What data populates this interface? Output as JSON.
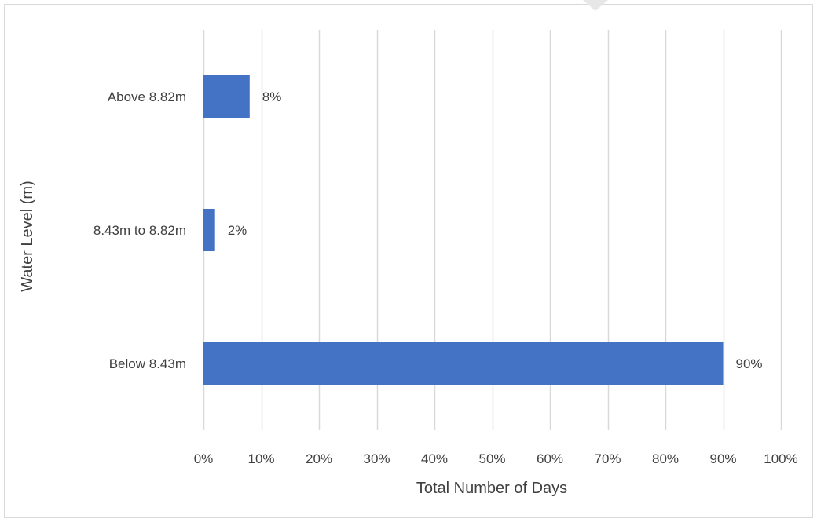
{
  "chart_data": {
    "type": "bar",
    "orientation": "horizontal",
    "categories": [
      "Above 8.82m",
      "8.43m to 8.82m",
      "Below 8.43m"
    ],
    "values": [
      8,
      2,
      90
    ],
    "data_labels": [
      "8%",
      "2%",
      "90%"
    ],
    "xlabel": "Total Number of Days",
    "ylabel": "Water Level (m)",
    "xlim": [
      0,
      100
    ],
    "x_ticks": [
      "0%",
      "10%",
      "20%",
      "30%",
      "40%",
      "50%",
      "60%",
      "70%",
      "80%",
      "90%",
      "100%"
    ],
    "grid": "vertical",
    "legend": "none",
    "bar_color": "#4472C4",
    "grid_color": "#D9D9D9",
    "frame_color": "#D9D9D9",
    "text_color": "#404040"
  }
}
